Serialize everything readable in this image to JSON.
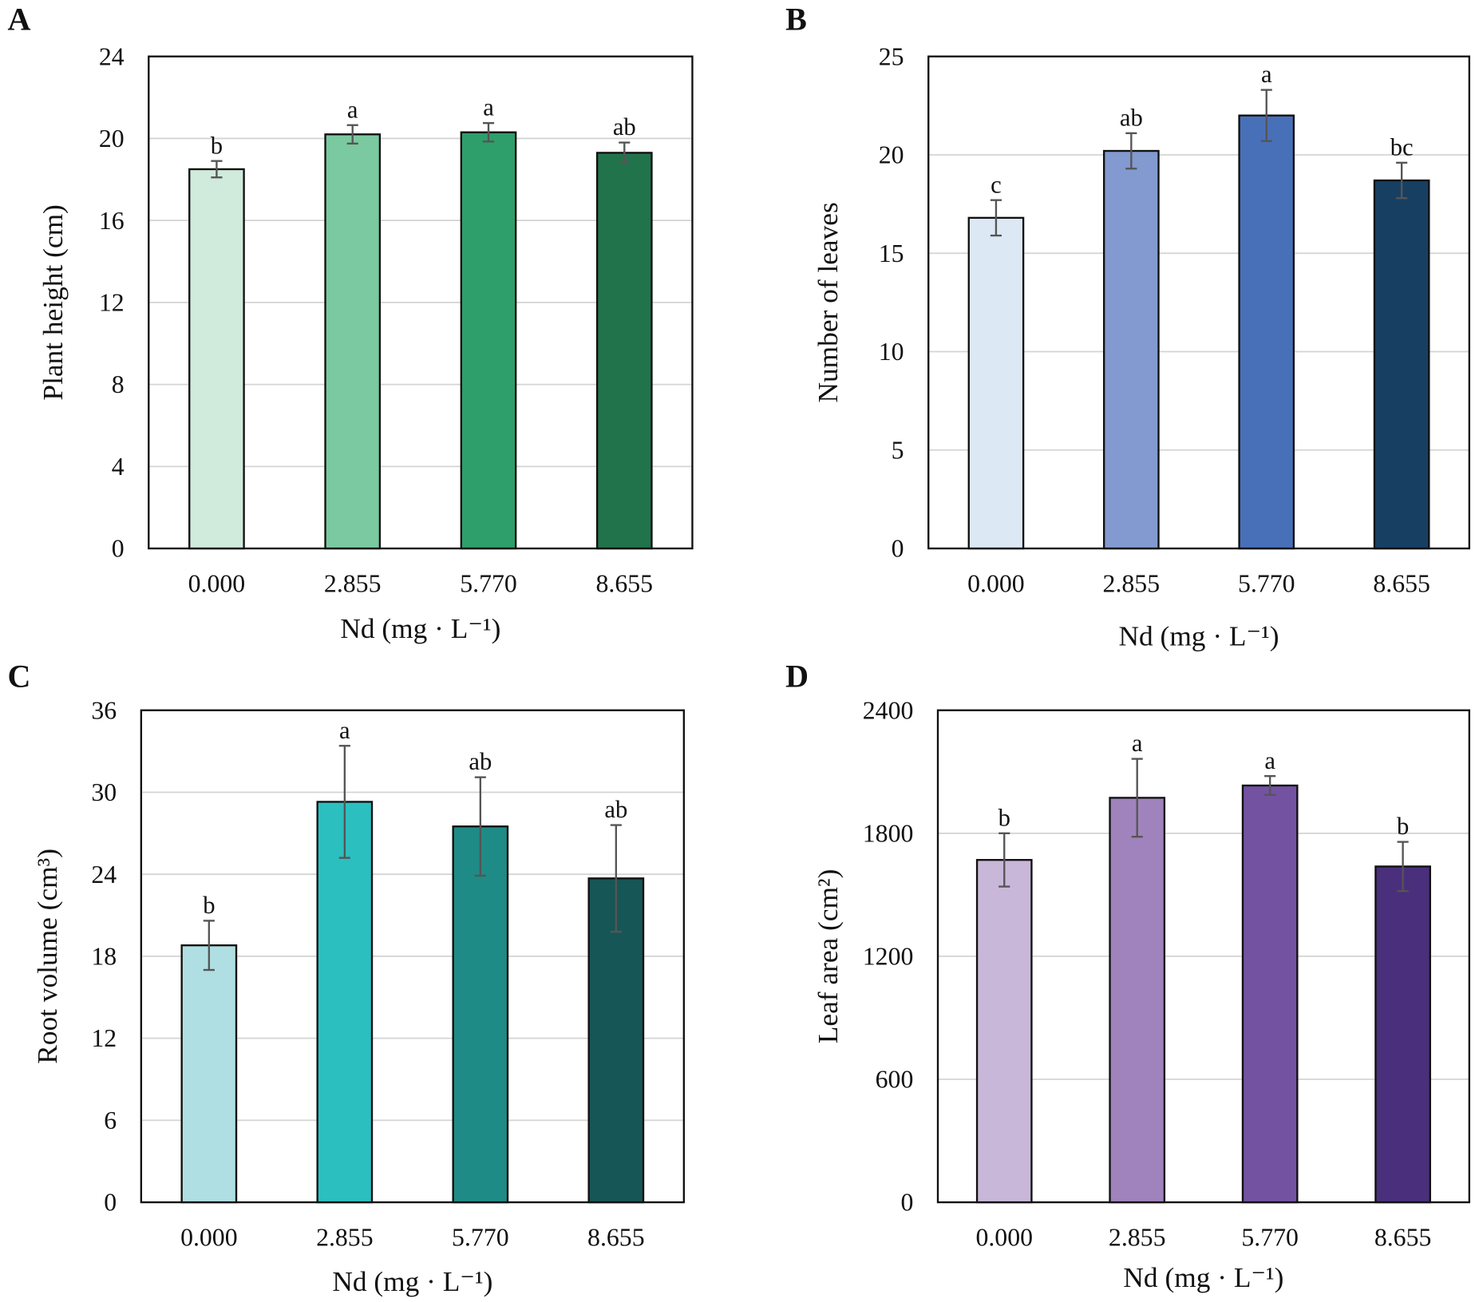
{
  "chart_data": [
    {
      "type": "bar",
      "panel": "A",
      "categories": [
        "0.000",
        "2.855",
        "5.770",
        "8.655"
      ],
      "values": [
        18.5,
        20.2,
        20.3,
        19.3
      ],
      "errors": [
        0.4,
        0.45,
        0.45,
        0.5
      ],
      "significance": [
        "b",
        "a",
        "a",
        "ab"
      ],
      "colors": [
        "#d0eadb",
        "#7bc9a0",
        "#2e9e6a",
        "#21734b"
      ],
      "xlabel": "Nd (mg · L⁻¹)",
      "ylabel": "Plant height (cm)",
      "ylim": [
        0,
        24
      ],
      "yticks": [
        0,
        4,
        8,
        12,
        16,
        20,
        24
      ],
      "grid": true
    },
    {
      "type": "bar",
      "panel": "B",
      "categories": [
        "0.000",
        "2.855",
        "5.770",
        "8.655"
      ],
      "values": [
        16.8,
        20.2,
        22.0,
        18.7
      ],
      "errors": [
        0.9,
        0.9,
        1.3,
        0.9
      ],
      "significance": [
        "c",
        "ab",
        "a",
        "bc"
      ],
      "colors": [
        "#dde8f5",
        "#829ad0",
        "#4870b8",
        "#173f62"
      ],
      "xlabel": "Nd (mg · L⁻¹)",
      "ylabel": "Number of leaves",
      "ylim": [
        0,
        25
      ],
      "yticks": [
        0,
        5,
        10,
        15,
        20,
        25
      ],
      "grid": true
    },
    {
      "type": "bar",
      "panel": "C",
      "categories": [
        "0.000",
        "2.855",
        "5.770",
        "8.655"
      ],
      "values": [
        18.8,
        29.3,
        27.5,
        23.7
      ],
      "errors": [
        1.8,
        4.1,
        3.6,
        3.9
      ],
      "significance": [
        "b",
        "a",
        "ab",
        "ab"
      ],
      "colors": [
        "#afdfe2",
        "#2cbfc0",
        "#1f8b86",
        "#175656"
      ],
      "xlabel": "Nd (mg · L⁻¹)",
      "ylabel": "Root volume (cm³)",
      "ylim": [
        0,
        36
      ],
      "yticks": [
        0,
        6,
        12,
        18,
        24,
        30,
        36
      ],
      "grid": true
    },
    {
      "type": "bar",
      "panel": "D",
      "categories": [
        "0.000",
        "2.855",
        "5.770",
        "8.655"
      ],
      "values": [
        1670,
        1973,
        2033,
        1638
      ],
      "errors": [
        130,
        190,
        46,
        120
      ],
      "significance": [
        "b",
        "a",
        "a",
        "b"
      ],
      "colors": [
        "#c9b7da",
        "#a083bc",
        "#7352a2",
        "#4a2f7c"
      ],
      "xlabel": "Nd (mg · L⁻¹)",
      "ylabel": "Leaf area (cm²)",
      "ylim": [
        0,
        2400
      ],
      "yticks": [
        0,
        600,
        1200,
        1800,
        2400
      ],
      "grid": true
    }
  ]
}
